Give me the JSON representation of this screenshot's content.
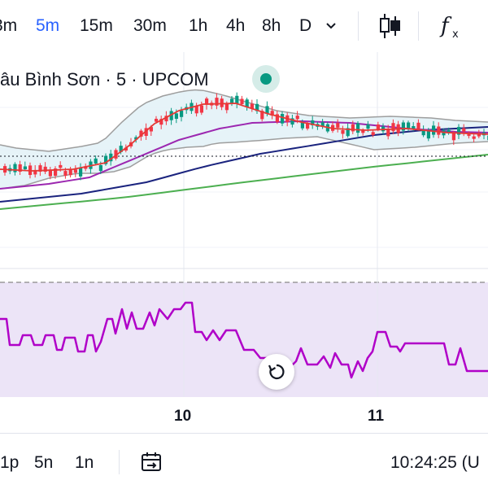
{
  "toolbar": {
    "timeframes": [
      {
        "label": "3m",
        "active": false
      },
      {
        "label": "5m",
        "active": true
      },
      {
        "label": "15m",
        "active": false
      },
      {
        "label": "30m",
        "active": false
      },
      {
        "label": "1h",
        "active": false
      },
      {
        "label": "4h",
        "active": false
      },
      {
        "label": "8h",
        "active": false
      },
      {
        "label": "D",
        "active": false
      }
    ],
    "dropdown_icon": "chevron-down-icon",
    "chart_type_icon": "candlestick-icon",
    "indicators_icon": "function-icon"
  },
  "legend": {
    "symbol": "âu Bình Sơn",
    "sep1": "·",
    "interval": "5",
    "sep2": "·",
    "exchange": "UPCOM",
    "market_status_icon": "status-dot-icon"
  },
  "x_axis": {
    "labels": [
      "10",
      "11"
    ]
  },
  "reset_button": {
    "icon": "reset-icon"
  },
  "bottom": {
    "ranges": [
      "1p",
      "5n",
      "1n"
    ],
    "date_range_icon": "calendar-goto-icon",
    "clock": "10:24:25 (U"
  },
  "colors": {
    "accent": "#2962ff",
    "up": "#089981",
    "down": "#f23645",
    "ma_red": "#e53935",
    "ma_purple": "#9c27b0",
    "ma_navy": "#1a237e",
    "ma_green": "#4caf50",
    "bollinger": "#9e9e9e",
    "oscillator": "#b000c8",
    "oscillator_bg": "#ece4f7"
  },
  "chart_data": {
    "type": "candlestick",
    "title": "",
    "x_ticks": [
      "10",
      "11"
    ],
    "overlays": [
      "moving average (red)",
      "moving average (purple)",
      "moving average (navy)",
      "moving average (green)",
      "bollinger bands"
    ],
    "lower_pane": "oscillator (purple line)"
  }
}
